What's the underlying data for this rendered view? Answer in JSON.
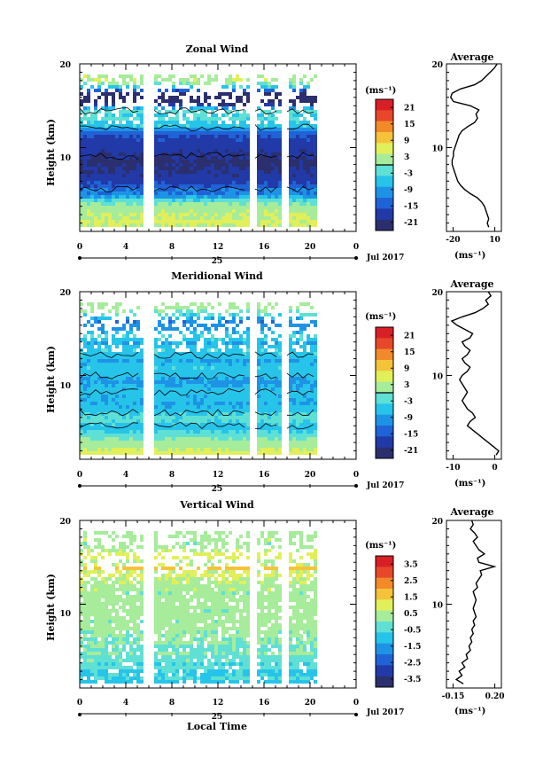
{
  "figure": {
    "date_label": "Jul 2017",
    "day_label": "25",
    "xlabel_bottom": "Local Time",
    "unit_label": "(ms⁻¹)"
  },
  "chart_data": [
    {
      "type": "heatmap",
      "title": "Zonal Wind",
      "ylabel": "Height (km)",
      "xlim": [
        0,
        24
      ],
      "ylim": [
        0,
        20
      ],
      "xticks": [
        "0",
        "4",
        "8",
        "12",
        "16",
        "20",
        "0"
      ],
      "yticks": [
        "10",
        "20"
      ],
      "colorbar": {
        "unit": "(ms⁻¹)",
        "ticks": [
          "21",
          "15",
          "9",
          "3",
          "-3",
          "-9",
          "-15",
          "-21"
        ],
        "range": [
          -24,
          24
        ]
      },
      "data_gaps_hours": [
        [
          5.5,
          6.3
        ],
        [
          14.5,
          15.1
        ],
        [
          17.4,
          18.0
        ],
        [
          20.5,
          24
        ]
      ],
      "profile": {
        "title": "Average",
        "xlabel": "(ms⁻¹)",
        "xticks": [
          "-20",
          "10"
        ],
        "xlim": [
          -25,
          14
        ],
        "yticks": [
          "10",
          "20"
        ],
        "heights_km": [
          0.5,
          1,
          1.5,
          2,
          2.5,
          3,
          3.5,
          4,
          4.5,
          5,
          5.5,
          6,
          6.5,
          7,
          7.5,
          8,
          8.5,
          9,
          9.5,
          10,
          10.5,
          11,
          11.5,
          12,
          12.5,
          13,
          13.5,
          14,
          14.5,
          15,
          15.5,
          16,
          16.5,
          17,
          17.5,
          18,
          18.5,
          19,
          19.5,
          20
        ],
        "values": [
          5,
          4,
          5,
          4,
          3,
          2,
          0,
          -3,
          -8,
          -12,
          -15,
          -17,
          -18,
          -19,
          -20,
          -21,
          -21,
          -20,
          -20,
          -19,
          -18,
          -17,
          -16,
          -14,
          -10,
          -5,
          -3,
          -4,
          -2,
          -8,
          -20,
          -22,
          -21,
          -15,
          -5,
          0,
          3,
          6,
          9,
          11
        ]
      }
    },
    {
      "type": "heatmap",
      "title": "Meridional Wind",
      "ylabel": "Height (km)",
      "xlim": [
        0,
        24
      ],
      "ylim": [
        0,
        20
      ],
      "xticks": [
        "0",
        "4",
        "8",
        "12",
        "16",
        "20",
        "0"
      ],
      "yticks": [
        "10",
        "20"
      ],
      "colorbar": {
        "unit": "(ms⁻¹)",
        "ticks": [
          "21",
          "15",
          "9",
          "3",
          "-3",
          "-9",
          "-15",
          "-21"
        ],
        "range": [
          -24,
          24
        ]
      },
      "data_gaps_hours": [
        [
          5.5,
          6.3
        ],
        [
          14.5,
          15.1
        ],
        [
          17.4,
          18.0
        ],
        [
          20.5,
          24
        ]
      ],
      "profile": {
        "title": "Average",
        "xlabel": "(ms⁻¹)",
        "xticks": [
          "-10",
          "0"
        ],
        "xlim": [
          -14,
          7
        ],
        "yticks": [
          "10",
          "20"
        ],
        "heights_km": [
          0.5,
          1,
          1.5,
          2,
          2.5,
          3,
          3.5,
          4,
          4.5,
          5,
          5.5,
          6,
          6.5,
          7,
          7.5,
          8,
          8.5,
          9,
          9.5,
          10,
          10.5,
          11,
          11.5,
          12,
          12.5,
          13,
          13.5,
          14,
          14.5,
          15,
          15.5,
          16,
          16.5,
          17,
          17.5,
          18,
          18.5,
          19,
          19.5,
          20
        ],
        "values": [
          5,
          6,
          4,
          2,
          0,
          -2,
          -4,
          -6,
          -5,
          -3,
          -4,
          -6,
          -7,
          -8,
          -7,
          -6,
          -7,
          -8,
          -9,
          -8,
          -6,
          -5,
          -7,
          -8,
          -6,
          -5,
          -7,
          -8,
          -5,
          -4,
          -7,
          -10,
          -12,
          -8,
          -3,
          0,
          2,
          1,
          3,
          2
        ]
      }
    },
    {
      "type": "heatmap",
      "title": "Vertical Wind",
      "ylabel": "Height (km)",
      "xlabel": "Local Time",
      "xlim": [
        0,
        24
      ],
      "ylim": [
        0,
        20
      ],
      "xticks": [
        "0",
        "4",
        "8",
        "12",
        "16",
        "20",
        "0"
      ],
      "yticks": [
        "10",
        "20"
      ],
      "colorbar": {
        "unit": "(ms⁻¹)",
        "ticks": [
          "3.5",
          "2.5",
          "1.5",
          "0.5",
          "-0.5",
          "-1.5",
          "-2.5",
          "-3.5"
        ],
        "range": [
          -4,
          4
        ]
      },
      "data_gaps_hours": [
        [
          5.5,
          6.3
        ],
        [
          14.5,
          15.1
        ],
        [
          17.4,
          18.0
        ],
        [
          20.5,
          24
        ]
      ],
      "profile": {
        "title": "Average",
        "xlabel": "(ms⁻¹)",
        "xticks": [
          "-0.15",
          "0.20"
        ],
        "xlim": [
          -0.17,
          0.22
        ],
        "yticks": [
          "10",
          "20"
        ],
        "heights_km": [
          0.5,
          1,
          1.5,
          2,
          2.5,
          3,
          3.5,
          4,
          4.5,
          5,
          5.5,
          6,
          6.5,
          7,
          7.5,
          8,
          8.5,
          9,
          9.5,
          10,
          10.5,
          11,
          11.5,
          12,
          12.5,
          13,
          13.5,
          14,
          14.5,
          15,
          15.5,
          16,
          16.5,
          17,
          17.5,
          18,
          18.5,
          19,
          19.5,
          20
        ],
        "values": [
          -0.05,
          -0.1,
          -0.06,
          -0.08,
          -0.04,
          -0.06,
          -0.02,
          -0.03,
          0.0,
          -0.01,
          0.01,
          0.0,
          0.02,
          0.01,
          0.03,
          0.02,
          0.04,
          0.03,
          0.02,
          0.03,
          0.04,
          0.03,
          0.02,
          0.05,
          0.04,
          0.06,
          0.08,
          0.07,
          0.17,
          0.06,
          0.05,
          0.1,
          0.06,
          0.04,
          0.02,
          0.05,
          0.03,
          0.0,
          0.02,
          0.01
        ]
      }
    }
  ],
  "colors": {
    "scale": [
      "#2b2f6e",
      "#2239a8",
      "#1f63d6",
      "#1e93e6",
      "#27c4ea",
      "#5fe0d4",
      "#a6ec9a",
      "#e1ef5a",
      "#f5c33a",
      "#f28a2a",
      "#e8482a",
      "#d81f26"
    ]
  }
}
